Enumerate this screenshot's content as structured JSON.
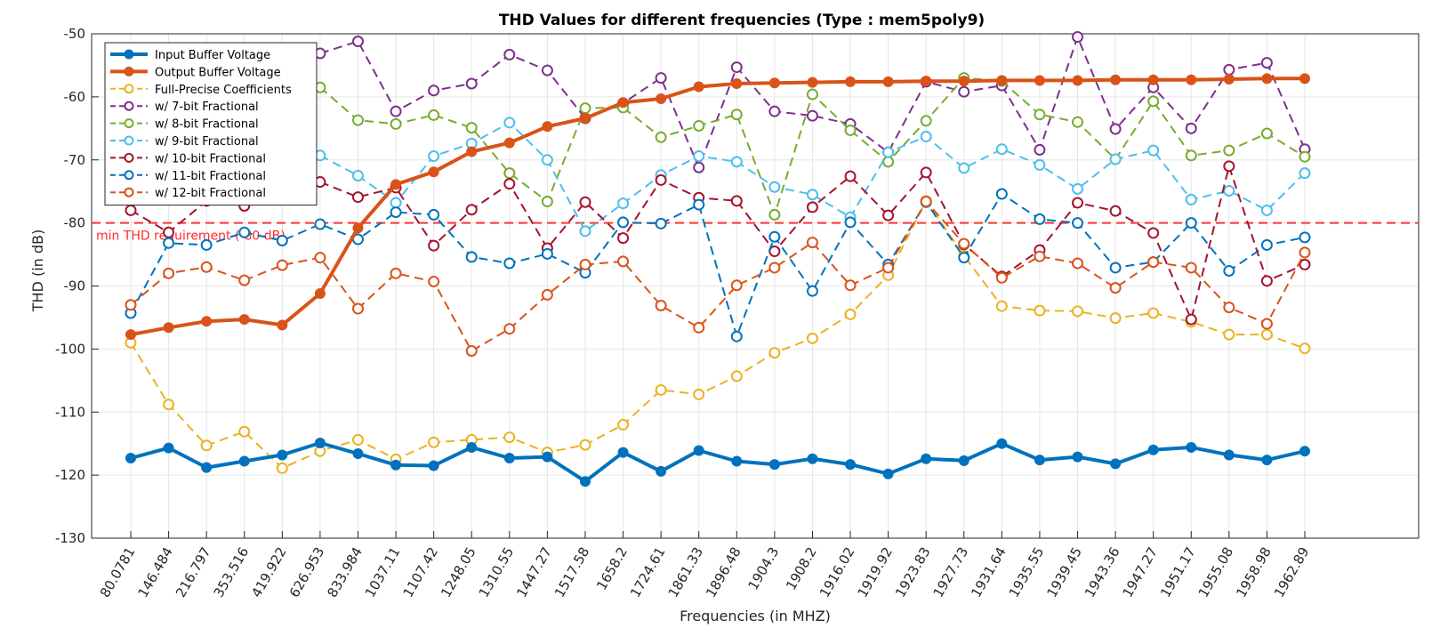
{
  "chart_data": {
    "type": "line",
    "title": "THD Values for different frequencies (Type : mem5poly9)",
    "xlabel": "Frequencies (in MHZ)",
    "ylabel": "THD (in dB)",
    "ylim": [
      -130,
      -50
    ],
    "yticks": [
      -50,
      -60,
      -70,
      -80,
      -90,
      -100,
      -110,
      -120,
      -130
    ],
    "grid": true,
    "legend_position": "top-left",
    "categories": [
      "80.0781",
      "146.484",
      "216.797",
      "353.516",
      "419.922",
      "626.953",
      "833.984",
      "1037.11",
      "1107.42",
      "1248.05",
      "1310.55",
      "1447.27",
      "1517.58",
      "1658.2",
      "1724.61",
      "1861.33",
      "1896.48",
      "1904.3",
      "1908.2",
      "1916.02",
      "1919.92",
      "1923.83",
      "1927.73",
      "1931.64",
      "1935.55",
      "1939.45",
      "1943.36",
      "1947.27",
      "1951.17",
      "1955.08",
      "1958.98",
      "1962.89"
    ],
    "reference_line": {
      "value": -80,
      "label": "min THD requirement (-80 dB)",
      "color": "#ff3333"
    },
    "series": [
      {
        "name": "Input Buffer Voltage",
        "color": "#0072BD",
        "style": "solid",
        "width": 4,
        "values": [
          -117.3,
          -115.7,
          -118.8,
          -117.8,
          -116.8,
          -114.9,
          -116.6,
          -118.4,
          -118.5,
          -115.6,
          -117.3,
          -117.1,
          -121.0,
          -116.4,
          -119.4,
          -116.1,
          -117.8,
          -118.3,
          -117.4,
          -118.3,
          -119.8,
          -117.4,
          -117.7,
          -115.0,
          -117.6,
          -117.1,
          -118.2,
          -116.0,
          -115.6,
          -116.8,
          -117.6,
          -116.2
        ]
      },
      {
        "name": "Output Buffer Voltage",
        "color": "#D95319",
        "style": "solid",
        "width": 4,
        "values": [
          -97.7,
          -96.6,
          -95.6,
          -95.3,
          -96.2,
          -91.2,
          -80.8,
          -73.9,
          -71.9,
          -68.7,
          -67.3,
          -64.7,
          -63.4,
          -60.9,
          -60.3,
          -58.4,
          -57.9,
          -57.8,
          -57.7,
          -57.6,
          -57.6,
          -57.5,
          -57.5,
          -57.4,
          -57.4,
          -57.4,
          -57.3,
          -57.3,
          -57.3,
          -57.2,
          -57.1,
          -57.1
        ]
      },
      {
        "name": "Full-Precise Coefficients",
        "color": "#EDB120",
        "style": "dashed",
        "width": 2,
        "values": [
          -99.0,
          -108.8,
          -115.3,
          -113.1,
          -118.9,
          -116.2,
          -114.4,
          -117.5,
          -114.8,
          -114.4,
          -114.0,
          -116.4,
          -115.2,
          -112.0,
          -106.5,
          -107.2,
          -104.3,
          -100.6,
          -98.3,
          -94.5,
          -88.3,
          -76.5,
          -85.2,
          -93.2,
          -93.9,
          -94.0,
          -95.1,
          -94.3,
          -95.7,
          -97.7,
          -97.7,
          -99.9
        ]
      },
      {
        "name": "w/ 7-bit Fractional",
        "color": "#7E2F8E",
        "style": "dashed",
        "width": 2,
        "values": [
          null,
          null,
          null,
          null,
          null,
          -53.1,
          -51.2,
          -62.3,
          -59.0,
          -57.9,
          -53.3,
          -55.8,
          -63.4,
          -61.0,
          -57.0,
          -71.2,
          -55.3,
          -62.3,
          -63.0,
          -64.3,
          -68.8,
          -57.6,
          -59.2,
          -58.2,
          -68.4,
          -50.5,
          -65.1,
          -58.5,
          -65.0,
          -55.7,
          -54.6,
          -68.3
        ]
      },
      {
        "name": "w/ 8-bit Fractional",
        "color": "#77AC30",
        "style": "dashed",
        "width": 2,
        "values": [
          null,
          null,
          null,
          null,
          null,
          -58.5,
          -63.7,
          -64.3,
          -62.9,
          -64.9,
          -72.1,
          -76.6,
          -61.8,
          -61.7,
          -66.4,
          -64.6,
          -62.8,
          -78.7,
          -59.6,
          -65.3,
          -70.3,
          -63.8,
          -57.0,
          -57.5,
          -62.8,
          -64.0,
          -69.9,
          -60.7,
          -69.3,
          -68.5,
          -65.8,
          -69.5
        ]
      },
      {
        "name": "w/ 9-bit Fractional",
        "color": "#4DBEEE",
        "style": "dashed",
        "width": 2,
        "values": [
          null,
          null,
          null,
          null,
          null,
          -69.3,
          -72.5,
          -76.8,
          -69.4,
          -67.4,
          -64.1,
          -70.0,
          -81.3,
          -76.9,
          -72.4,
          -69.4,
          -70.3,
          -74.3,
          -75.5,
          -79.1,
          -68.8,
          -66.3,
          -71.3,
          -68.3,
          -70.8,
          -74.6,
          -69.9,
          -68.5,
          -76.3,
          -74.9,
          -78.0,
          -72.1
        ]
      },
      {
        "name": "w/ 10-bit Fractional",
        "color": "#A2142F",
        "style": "dashed",
        "width": 2,
        "values": [
          -78.0,
          -81.5,
          -76.5,
          -77.3,
          null,
          -73.5,
          -75.9,
          -74.4,
          -83.6,
          -77.9,
          -73.8,
          -84.0,
          -76.7,
          -82.4,
          -73.2,
          -76.0,
          -76.5,
          -84.5,
          -77.5,
          -72.6,
          -78.8,
          -72.0,
          -83.4,
          -88.5,
          -84.3,
          -76.8,
          -78.1,
          -81.6,
          -95.3,
          -71.0,
          -89.2,
          -86.6
        ]
      },
      {
        "name": "w/ 11-bit Fractional",
        "color": "#0072BD",
        "style": "dashed",
        "width": 2,
        "values": [
          -94.3,
          -83.2,
          -83.5,
          -81.5,
          -82.8,
          -80.2,
          -82.6,
          -78.3,
          -78.7,
          -85.4,
          -86.4,
          -84.9,
          -87.9,
          -79.9,
          -80.1,
          -77.1,
          -98.0,
          -82.2,
          -90.8,
          -79.9,
          -86.6,
          -76.7,
          -85.5,
          -75.4,
          -79.4,
          -80.0,
          -87.1,
          -86.2,
          -80.0,
          -87.6,
          -83.5,
          -82.3
        ]
      },
      {
        "name": "w/ 12-bit Fractional",
        "color": "#D95319",
        "style": "dashed",
        "width": 2,
        "values": [
          -93.0,
          -88.0,
          -87.0,
          -89.1,
          -86.7,
          -85.5,
          -93.6,
          -88.0,
          -89.3,
          -100.3,
          -96.8,
          -91.4,
          -86.6,
          -86.1,
          -93.1,
          -96.6,
          -89.9,
          -87.1,
          -83.1,
          -89.9,
          -87.1,
          -76.6,
          -83.3,
          -88.7,
          -85.3,
          -86.4,
          -90.3,
          -86.2,
          -87.1,
          -93.4,
          -96.0,
          -84.7
        ]
      }
    ]
  }
}
